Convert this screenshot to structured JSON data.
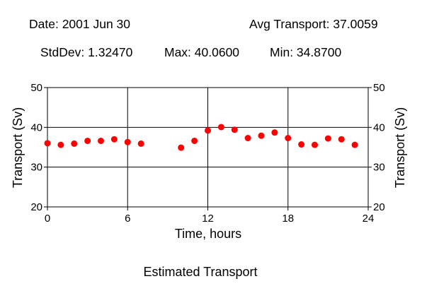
{
  "header": {
    "date": "Date: 2001 Jun 30",
    "avg": "Avg Transport: 37.0059",
    "stddev": "StdDev: 1.32470",
    "max": "Max: 40.0600",
    "min": "Min: 34.8700"
  },
  "chart_data": {
    "type": "scatter",
    "title": "Estimated Transport",
    "xlabel": "Time, hours",
    "ylabel": "Transport (Sv)",
    "ylabel_right": "Transport (Sv)",
    "xlim": [
      0,
      24
    ],
    "ylim": [
      20,
      50
    ],
    "x_ticks": [
      0,
      6,
      12,
      18,
      24
    ],
    "y_ticks": [
      20,
      30,
      40,
      50
    ],
    "grid": true,
    "marker_color": "#ff0000",
    "x": [
      0,
      1,
      2,
      3,
      4,
      5,
      6,
      7,
      10,
      11,
      12,
      13,
      14,
      15,
      16,
      17,
      18,
      19,
      20,
      21,
      22,
      23
    ],
    "y": [
      36.0,
      35.6,
      35.9,
      36.6,
      36.6,
      37.0,
      36.3,
      35.9,
      34.9,
      36.6,
      39.2,
      40.06,
      39.4,
      37.3,
      37.9,
      38.7,
      37.3,
      35.7,
      35.6,
      37.2,
      37.0,
      35.6
    ]
  }
}
